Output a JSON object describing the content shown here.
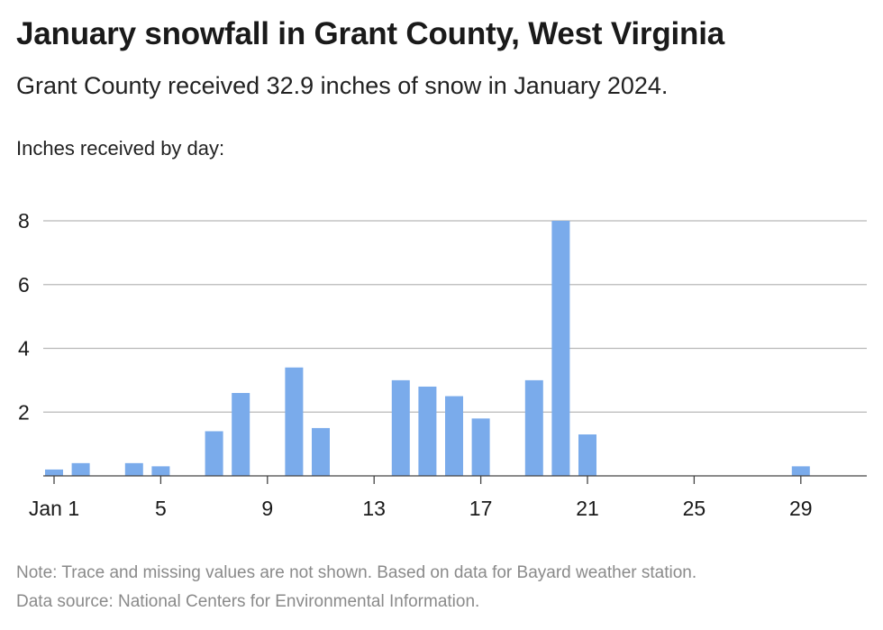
{
  "title": "January snowfall in Grant County, West Virginia",
  "subtitle": "Grant County received 32.9 inches of snow in January 2024.",
  "notes": {
    "note": "Note: Trace and missing values are not shown. Based on data for Bayard weather station.",
    "source": "Data source: National Centers for Environmental Information."
  },
  "chart_data": {
    "type": "bar",
    "ylabel": "Inches received by day:",
    "ylim": [
      0,
      8
    ],
    "yticks": [
      2,
      4,
      6,
      8
    ],
    "xlim": [
      1,
      31
    ],
    "xticks": [
      {
        "day": 1,
        "label": "Jan 1"
      },
      {
        "day": 5,
        "label": "5"
      },
      {
        "day": 9,
        "label": "9"
      },
      {
        "day": 13,
        "label": "13"
      },
      {
        "day": 17,
        "label": "17"
      },
      {
        "day": 21,
        "label": "21"
      },
      {
        "day": 25,
        "label": "25"
      },
      {
        "day": 29,
        "label": "29"
      }
    ],
    "grid": true,
    "bar_color": "#7aabeb",
    "x": [
      1,
      2,
      4,
      5,
      7,
      8,
      10,
      11,
      14,
      15,
      16,
      17,
      19,
      20,
      21,
      29
    ],
    "values": [
      0.2,
      0.4,
      0.4,
      0.3,
      1.4,
      2.6,
      3.4,
      1.5,
      3.0,
      2.8,
      2.5,
      1.8,
      3.0,
      8.0,
      1.3,
      0.3
    ]
  }
}
